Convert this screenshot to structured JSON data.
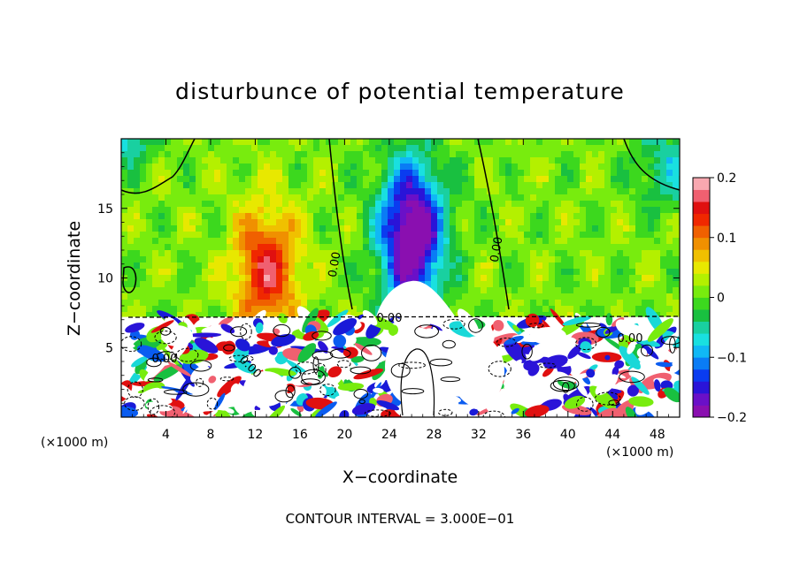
{
  "chart_data": {
    "type": "heatmap",
    "title": "disturbunce of potential temperature",
    "xlabel": "X−coordinate",
    "ylabel": "Z−coordinate",
    "x_unit": "(×1000 m)",
    "z_unit": "(×1000 m)",
    "xlim": [
      0,
      50
    ],
    "ylim": [
      0,
      20
    ],
    "x_ticks": [
      4,
      8,
      12,
      16,
      20,
      24,
      28,
      32,
      36,
      40,
      44,
      48
    ],
    "x_tick_labels": [
      "4",
      "8",
      "12",
      "16",
      "20",
      "24",
      "28",
      "32",
      "36",
      "40",
      "44",
      "48"
    ],
    "y_ticks": [
      5,
      10,
      15
    ],
    "y_tick_labels": [
      "5",
      "10",
      "15"
    ],
    "colorbar": {
      "range": [
        -0.2,
        0.2
      ],
      "ticks": [
        0.2,
        0.1,
        0,
        -0.1,
        -0.2
      ],
      "tick_labels": [
        "0.2",
        "0.1",
        "0",
        "−0.1",
        "−0.2"
      ],
      "colors": [
        "#8a0fb0",
        "#6a10c8",
        "#2a14d8",
        "#0a3cf0",
        "#0a7cf5",
        "#10b8f5",
        "#19e0e0",
        "#19d0a0",
        "#19c040",
        "#3cd81e",
        "#78ec0e",
        "#b4f000",
        "#e8e800",
        "#f0c000",
        "#f09000",
        "#f06000",
        "#f02800",
        "#e01010",
        "#f06070",
        "#f8a8b0"
      ]
    },
    "contour_labels": [
      "0.00",
      "0.00",
      "0.00",
      "0.00",
      "0.00",
      "0.00"
    ],
    "contour_interval_text": "CONTOUR INTERVAL = 3.000E−01",
    "inversion_height": 7.2,
    "fields": [
      {
        "name": "upper-warm-plume",
        "x": 13,
        "z": 10.5,
        "sx": 2.8,
        "sz": 4.5,
        "amp": 0.14
      },
      {
        "name": "upper-cold-plume",
        "x": 26,
        "z": 13,
        "sx": 2.8,
        "sz": 5.2,
        "amp": -0.24
      },
      {
        "name": "upper-cold-right-edge",
        "x": 49,
        "z": 18,
        "sx": 3,
        "sz": 3,
        "amp": -0.07
      },
      {
        "name": "upper-cold-left-top",
        "x": 0,
        "z": 20,
        "sx": 3,
        "sz": 2,
        "amp": -0.08
      }
    ]
  }
}
